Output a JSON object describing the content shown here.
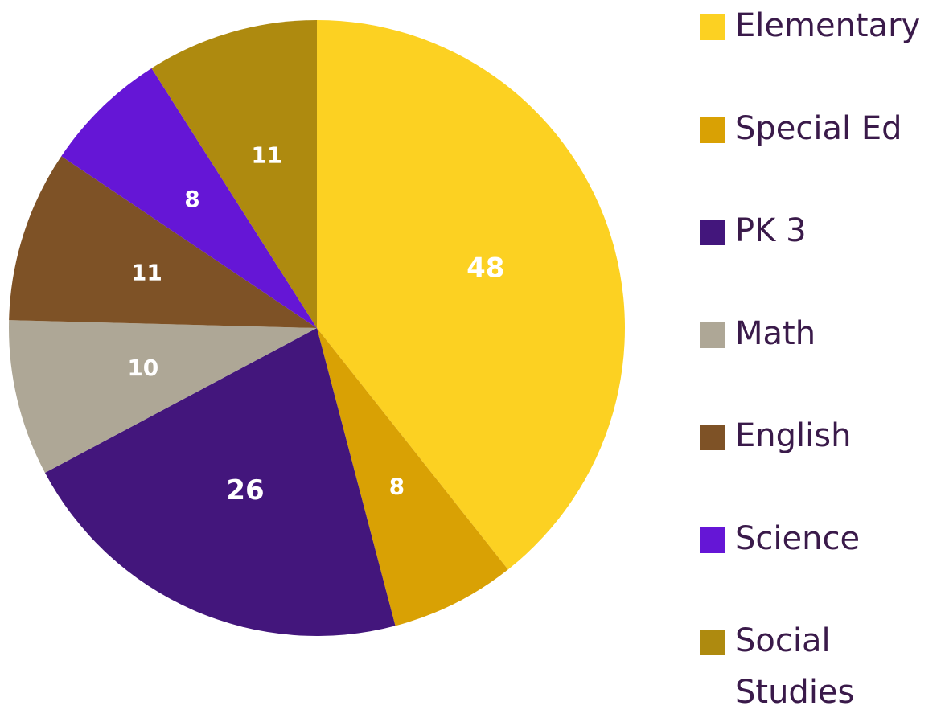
{
  "chart_data": {
    "type": "pie",
    "categories": [
      "Elementary",
      "Special Ed",
      "PK 3",
      "Math",
      "English",
      "Science",
      "Social Studies"
    ],
    "values": [
      48,
      8,
      26,
      10,
      11,
      8,
      11
    ],
    "colors": [
      "#fcd122",
      "#d9a104",
      "#43167c",
      "#aea796",
      "#7e5226",
      "#6516d6",
      "#ae8a0f"
    ],
    "legend": "right"
  }
}
